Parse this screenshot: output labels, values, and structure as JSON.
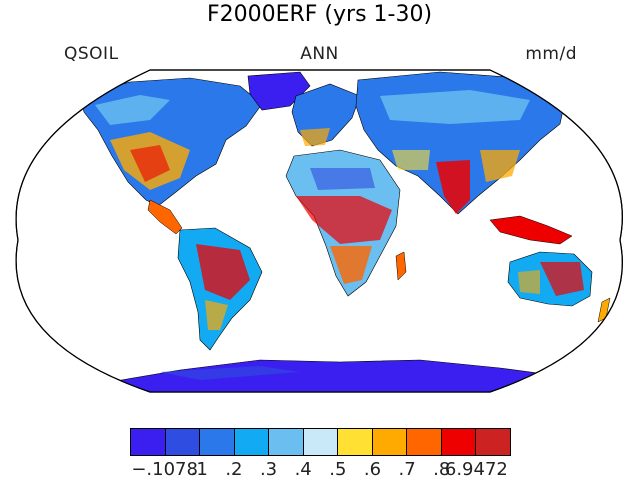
{
  "title": "F2000ERF (yrs 1-30)",
  "variable": "QSOIL",
  "period": "ANN",
  "units": "mm/d",
  "colorbar": {
    "colors": [
      "#3a1ff0",
      "#2f4de0",
      "#2a78ea",
      "#12aaf2",
      "#6bbff0",
      "#c9e8f8",
      "#ffe033",
      "#ffaa00",
      "#ff6600",
      "#ee0000",
      "#cc2222"
    ],
    "labels": [
      "−.1078",
      ".1",
      ".2",
      ".3",
      ".4",
      ".5",
      ".6",
      ".7",
      ".8",
      "6.9472"
    ]
  }
}
